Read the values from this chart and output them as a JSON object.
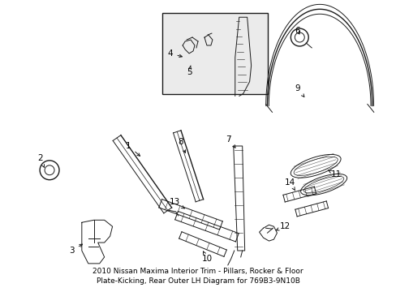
{
  "title": "2010 Nissan Maxima Interior Trim - Pillars, Rocker & Floor\nPlate-Kicking, Rear Outer LH Diagram for 769B3-9N10B",
  "bg_color": "#ffffff",
  "line_color": "#1a1a1a",
  "title_fontsize": 6.5,
  "fig_width": 4.89,
  "fig_height": 3.6,
  "dpi": 100
}
